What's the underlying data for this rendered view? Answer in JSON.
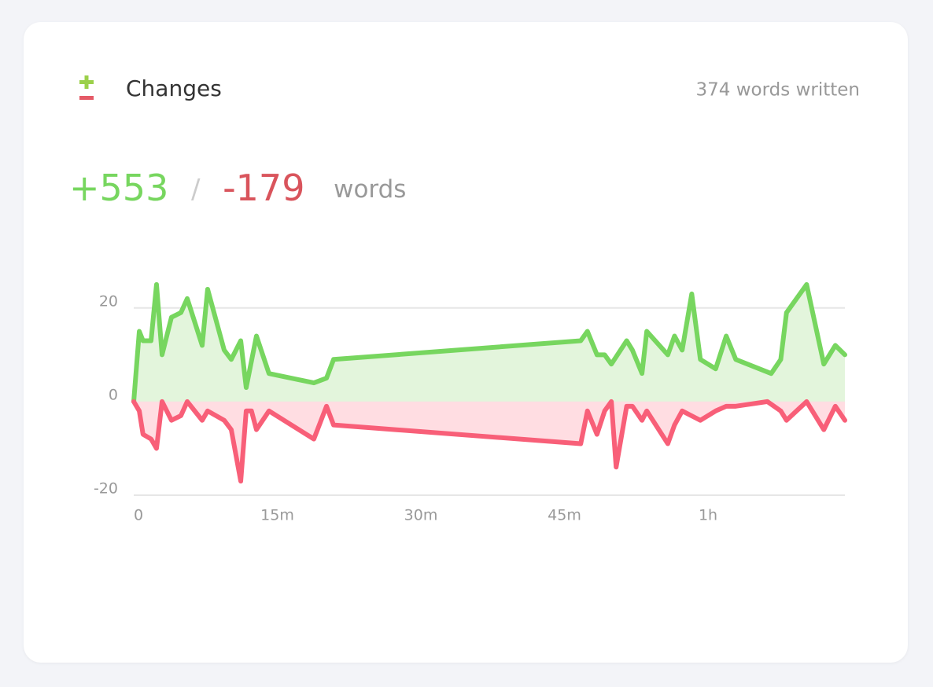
{
  "header": {
    "title": "Changes",
    "summary": "374 words written",
    "added": "+553",
    "separator": "/",
    "removed": "-179",
    "unit": "words"
  },
  "chart_data": {
    "type": "area-line",
    "xlim": [
      0,
      74.3
    ],
    "xticks": [
      0,
      {
        "value": 15,
        "label": "15m"
      },
      {
        "value": 30,
        "label": "30m"
      },
      {
        "value": 45,
        "label": "45m"
      },
      {
        "value": 60,
        "label": "1h"
      }
    ],
    "ylim": [
      -20,
      25
    ],
    "yticks": [
      -20,
      0,
      20
    ],
    "grid": true,
    "series": [
      {
        "color": "#77d65f",
        "fill": "#e3f5dc",
        "x": [
          0,
          0.58,
          0.97,
          1.81,
          2.38,
          2.96,
          3.94,
          4.93,
          5.59,
          7.15,
          7.72,
          9.45,
          10.19,
          11.18,
          11.75,
          12.82,
          14.13,
          18.82,
          20.14,
          20.88,
          46.7,
          47.4,
          48.4,
          49.2,
          49.9,
          51.5,
          52.1,
          53.1,
          53.6,
          55.8,
          56.5,
          57.3,
          58.3,
          59.2,
          60.8,
          61.9,
          62.9,
          66.6,
          67.6,
          68.2,
          70.3,
          72.1,
          73.3,
          74.3
        ],
        "values": [
          0,
          15,
          13,
          13,
          25,
          10,
          18,
          19,
          22,
          12,
          24,
          11,
          9,
          13,
          3,
          14,
          6,
          4,
          5,
          9,
          13,
          15,
          10,
          10,
          8,
          13,
          11,
          6,
          15,
          10,
          14,
          11,
          23,
          9,
          7,
          14,
          9,
          6,
          9,
          19,
          25,
          8,
          12,
          10
        ]
      },
      {
        "color": "#f85f78",
        "fill": "#ffdde2",
        "x": [
          0,
          0.58,
          0.97,
          1.81,
          2.38,
          2.96,
          3.94,
          4.93,
          5.59,
          7.15,
          7.72,
          9.45,
          10.19,
          11.18,
          11.75,
          12.3,
          12.82,
          14.13,
          18.82,
          20.14,
          20.88,
          46.7,
          47.4,
          48.4,
          49.2,
          49.9,
          50.4,
          51.5,
          52.1,
          53.1,
          53.6,
          55.8,
          56.5,
          57.3,
          59.2,
          60.8,
          61.9,
          62.9,
          66.2,
          67.6,
          68.2,
          70.3,
          72.1,
          73.3,
          74.3
        ],
        "values": [
          0,
          -2,
          -7,
          -8,
          -10,
          0,
          -4,
          -3,
          0,
          -4,
          -2,
          -4,
          -6,
          -17,
          -2,
          -2,
          -6,
          -2,
          -8,
          -1,
          -5,
          -9,
          -2,
          -7,
          -2,
          0,
          -14,
          -1,
          -1,
          -4,
          -2,
          -9,
          -5,
          -2,
          -4,
          -2,
          -1,
          -1,
          0,
          -2,
          -4,
          0,
          -6,
          -1,
          -4
        ]
      }
    ]
  }
}
